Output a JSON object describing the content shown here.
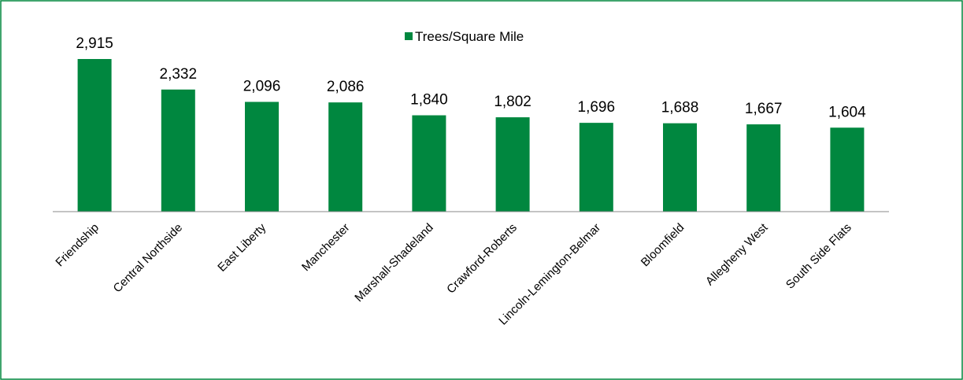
{
  "chart_data": {
    "type": "bar",
    "categories": [
      "Friendship",
      "Central Northside",
      "East Liberty",
      "Manchester",
      "Marshall-Shadeland",
      "Crawford-Roberts",
      "Lincoln-Lemington-Belmar",
      "Bloomfield",
      "Allegheny West",
      "South Side Flats"
    ],
    "series": [
      {
        "name": "Trees/Square Mile",
        "color": "#00873f",
        "values": [
          2915,
          2332,
          2096,
          2086,
          1840,
          1802,
          1696,
          1688,
          1667,
          1604
        ],
        "value_labels": [
          "2,915",
          "2,332",
          "2,096",
          "2,086",
          "1,840",
          "1,802",
          "1,696",
          "1,688",
          "1,667",
          "1,604"
        ]
      }
    ],
    "legend": "top"
  }
}
